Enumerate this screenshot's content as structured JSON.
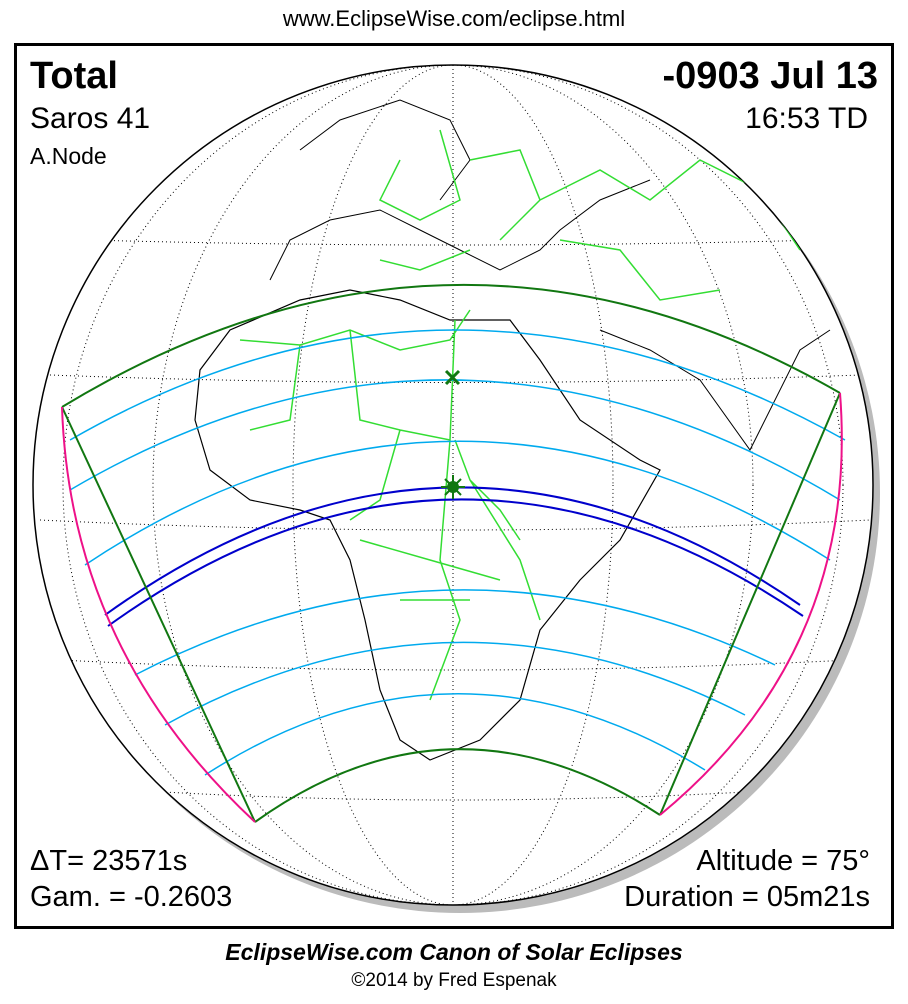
{
  "header": {
    "url": "www.EclipseWise.com/eclipse.html"
  },
  "eclipse": {
    "type": "Total",
    "date": "-0903 Jul 13",
    "saros": "Saros  41",
    "time": "16:53 TD",
    "node": "A.Node",
    "delta_t": "ΔT=  23571s",
    "gamma": "Gam. = -0.2603",
    "altitude": "Altitude = 75°",
    "duration": "Duration = 05m21s"
  },
  "footer": {
    "title": "EclipseWise.com Canon of Solar Eclipses",
    "copyright": "©2014 by Fred Espenak"
  },
  "colors": {
    "central_path": "#0000cc",
    "penumbral_lines": "#00aaee",
    "limits": "#117711",
    "rise_set": "#ee1188",
    "borders": "#33dd33",
    "coast": "#000000"
  },
  "markers": {
    "greatest_eclipse": "star-icon",
    "greatest_duration": "x-icon"
  }
}
